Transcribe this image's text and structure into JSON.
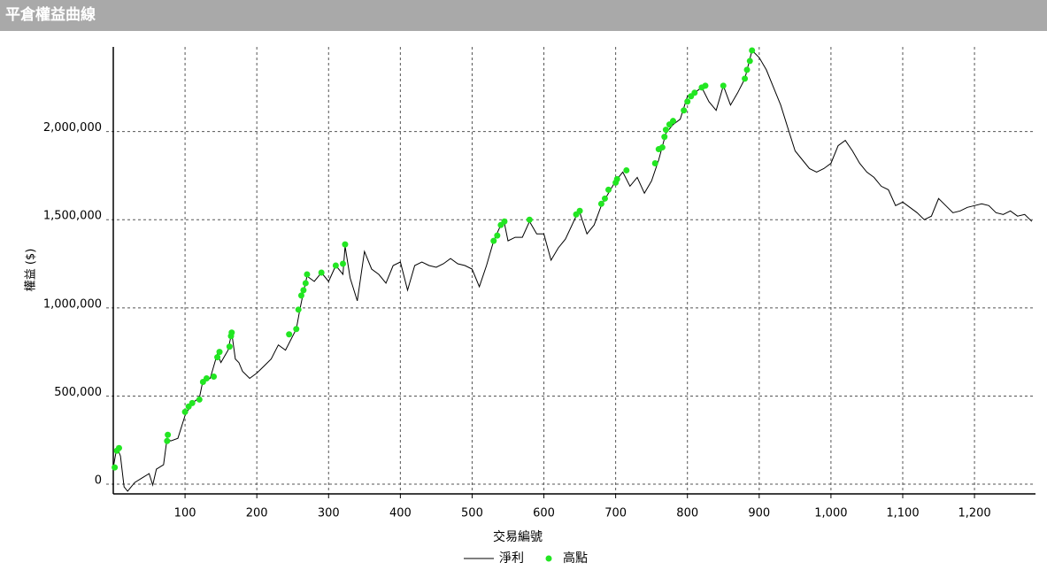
{
  "chart_data": {
    "type": "line",
    "title": "平倉權益曲線",
    "x_label": "交易編號",
    "y_label": "權益 ($)",
    "xlim": [
      0,
      1285
    ],
    "ylim": [
      -55000,
      2480000
    ],
    "xticks": [
      100,
      200,
      300,
      400,
      500,
      600,
      700,
      800,
      900,
      {
        "value": 1000,
        "label": "1,000"
      },
      {
        "value": 1100,
        "label": "1,100"
      },
      {
        "value": 1200,
        "label": "1,200"
      }
    ],
    "yticks": [
      0,
      {
        "value": 500000,
        "label": "500,000"
      },
      {
        "value": 1000000,
        "label": "1,000,000"
      },
      {
        "value": 1500000,
        "label": "1,500,000"
      },
      {
        "value": 2000000,
        "label": "2,000,000"
      }
    ],
    "grid": true,
    "series": [
      {
        "name": "淨利",
        "type": "line",
        "color": "#000000",
        "x": [
          0,
          5,
          10,
          15,
          20,
          30,
          40,
          50,
          55,
          60,
          70,
          75,
          80,
          90,
          100,
          110,
          120,
          125,
          135,
          145,
          150,
          160,
          165,
          170,
          175,
          180,
          190,
          200,
          210,
          220,
          230,
          240,
          250,
          255,
          260,
          265,
          270,
          280,
          290,
          300,
          310,
          320,
          323,
          330,
          340,
          350,
          360,
          370,
          380,
          390,
          400,
          410,
          420,
          430,
          440,
          450,
          460,
          470,
          480,
          490,
          500,
          510,
          520,
          530,
          540,
          545,
          550,
          560,
          570,
          580,
          590,
          600,
          610,
          620,
          630,
          645,
          650,
          660,
          670,
          680,
          690,
          700,
          710,
          720,
          730,
          740,
          750,
          760,
          770,
          780,
          790,
          800,
          810,
          820,
          830,
          840,
          850,
          860,
          870,
          880,
          890,
          900,
          910,
          920,
          930,
          940,
          950,
          960,
          970,
          980,
          990,
          1000,
          1010,
          1020,
          1030,
          1040,
          1050,
          1060,
          1070,
          1080,
          1090,
          1100,
          1110,
          1120,
          1130,
          1140,
          1150,
          1160,
          1170,
          1180,
          1190,
          1200,
          1210,
          1220,
          1230,
          1240,
          1250,
          1260,
          1270,
          1280
        ],
        "values": [
          95000,
          210000,
          160000,
          -15000,
          -40000,
          10000,
          35000,
          60000,
          -5000,
          85000,
          110000,
          260000,
          245000,
          260000,
          390000,
          460000,
          490000,
          590000,
          600000,
          740000,
          690000,
          760000,
          860000,
          710000,
          690000,
          640000,
          600000,
          630000,
          670000,
          710000,
          790000,
          760000,
          840000,
          880000,
          990000,
          1090000,
          1180000,
          1150000,
          1200000,
          1150000,
          1240000,
          1190000,
          1350000,
          1170000,
          1040000,
          1320000,
          1220000,
          1190000,
          1140000,
          1240000,
          1260000,
          1100000,
          1240000,
          1260000,
          1240000,
          1230000,
          1250000,
          1280000,
          1250000,
          1240000,
          1220000,
          1120000,
          1240000,
          1380000,
          1470000,
          1480000,
          1380000,
          1400000,
          1400000,
          1490000,
          1420000,
          1420000,
          1270000,
          1340000,
          1390000,
          1520000,
          1540000,
          1420000,
          1470000,
          1580000,
          1650000,
          1720000,
          1770000,
          1690000,
          1740000,
          1650000,
          1720000,
          1840000,
          1990000,
          2040000,
          2070000,
          2200000,
          2220000,
          2250000,
          2170000,
          2120000,
          2260000,
          2150000,
          2220000,
          2300000,
          2460000,
          2420000,
          2350000,
          2250000,
          2150000,
          2020000,
          1890000,
          1840000,
          1790000,
          1770000,
          1790000,
          1820000,
          1920000,
          1950000,
          1890000,
          1820000,
          1770000,
          1740000,
          1690000,
          1670000,
          1580000,
          1600000,
          1570000,
          1540000,
          1500000,
          1520000,
          1620000,
          1580000,
          1540000,
          1550000,
          1570000,
          1580000,
          1590000,
          1580000,
          1540000,
          1530000,
          1550000,
          1520000,
          1530000,
          1490000
        ]
      },
      {
        "name": "高點",
        "type": "scatter",
        "color": "#22e622",
        "x": [
          2,
          5,
          8,
          75,
          76,
          100,
          105,
          110,
          120,
          125,
          130,
          140,
          145,
          148,
          162,
          164,
          165,
          245,
          255,
          258,
          262,
          265,
          268,
          270,
          290,
          310,
          320,
          323,
          530,
          535,
          540,
          545,
          580,
          645,
          650,
          680,
          685,
          690,
          700,
          702,
          715,
          755,
          760,
          765,
          768,
          770,
          775,
          780,
          795,
          800,
          805,
          810,
          820,
          825,
          850,
          880,
          883,
          887,
          890
        ],
        "values": [
          95000,
          190000,
          205000,
          245000,
          280000,
          410000,
          440000,
          460000,
          480000,
          580000,
          600000,
          610000,
          720000,
          750000,
          780000,
          840000,
          860000,
          850000,
          880000,
          990000,
          1070000,
          1100000,
          1140000,
          1190000,
          1200000,
          1240000,
          1250000,
          1360000,
          1380000,
          1410000,
          1470000,
          1490000,
          1500000,
          1530000,
          1550000,
          1590000,
          1620000,
          1670000,
          1710000,
          1730000,
          1780000,
          1820000,
          1900000,
          1910000,
          1970000,
          2010000,
          2040000,
          2060000,
          2120000,
          2170000,
          2200000,
          2220000,
          2250000,
          2260000,
          2260000,
          2300000,
          2350000,
          2400000,
          2460000
        ]
      }
    ]
  }
}
